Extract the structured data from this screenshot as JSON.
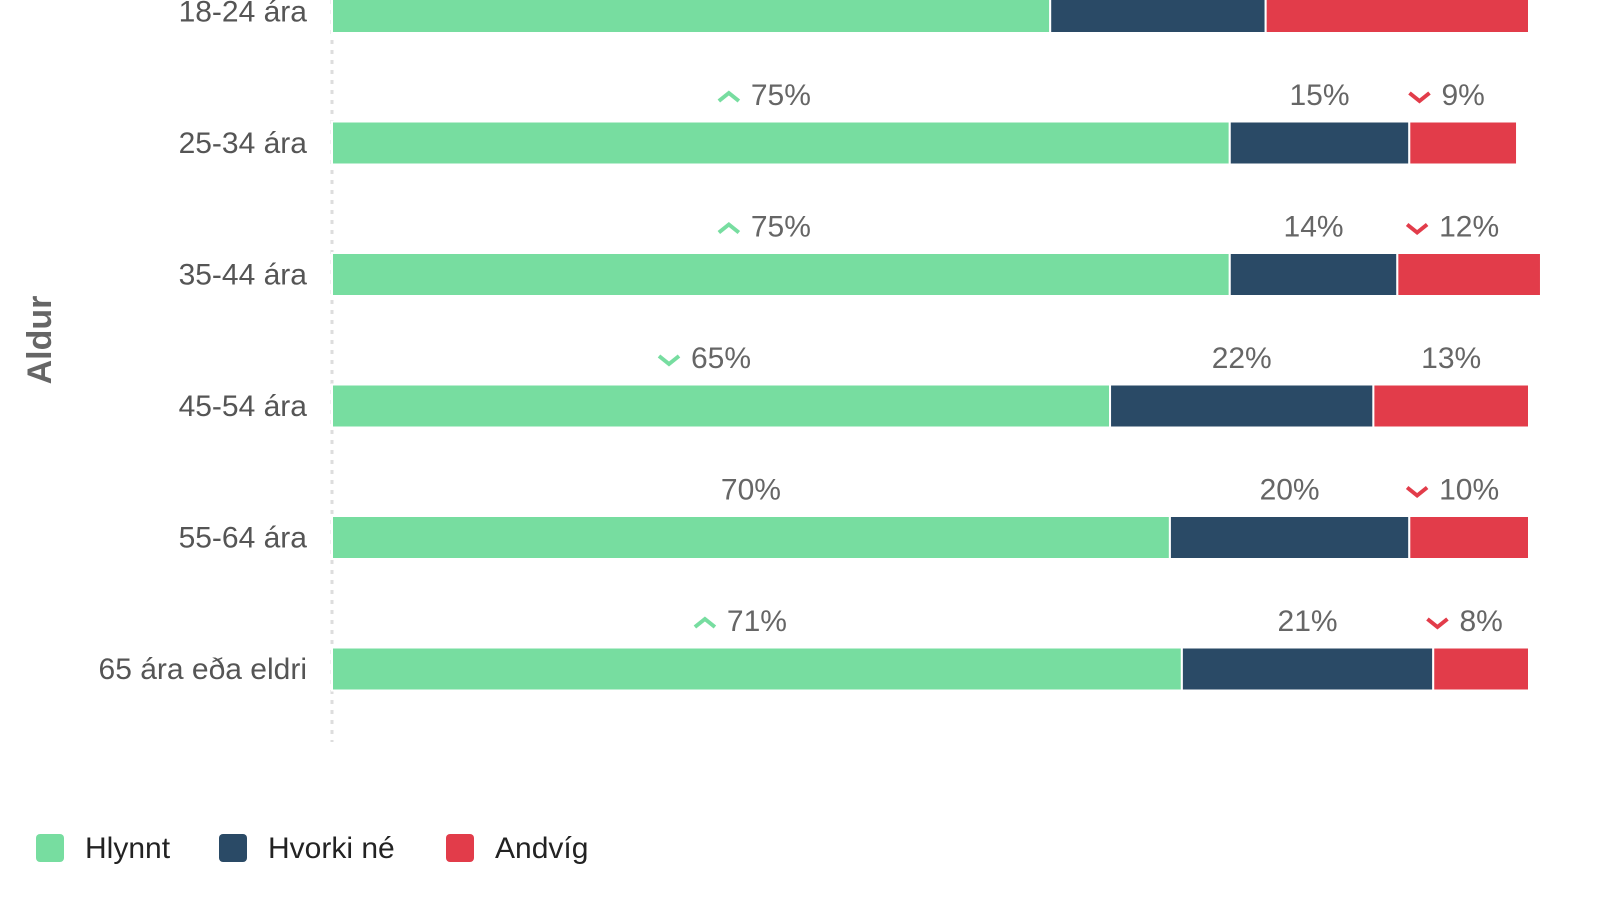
{
  "chart_data": {
    "type": "stacked-bar-horizontal",
    "y_label": "Aldur",
    "categories": [
      "18-24 ára",
      "25-34 ára",
      "35-44 ára",
      "45-54 ára",
      "55-64 ára",
      "65 ára eða eldri"
    ],
    "xlim": [
      0,
      100
    ],
    "legend": "bottom-left",
    "series": [
      {
        "name": "Hlynnt",
        "color": "#77dda0",
        "values": [
          60,
          75,
          75,
          65,
          70,
          71
        ],
        "value_labels": [
          null,
          "75%",
          "75%",
          "65%",
          "70%",
          "71%"
        ],
        "trends": [
          null,
          "up",
          "up",
          "down",
          null,
          "up"
        ]
      },
      {
        "name": "Hvorki né",
        "color": "#2a4a66",
        "values": [
          18,
          15,
          14,
          22,
          20,
          21
        ],
        "value_labels": [
          null,
          "15%",
          "14%",
          "22%",
          "20%",
          "21%"
        ],
        "trends": [
          null,
          null,
          null,
          null,
          null,
          null
        ]
      },
      {
        "name": "Andvíg",
        "color": "#e23c4a",
        "values": [
          22,
          9,
          12,
          13,
          10,
          8
        ],
        "value_labels": [
          null,
          "9%",
          "12%",
          "13%",
          "10%",
          "8%"
        ],
        "trends": [
          null,
          "down",
          "down",
          null,
          "down",
          "down"
        ]
      }
    ]
  }
}
